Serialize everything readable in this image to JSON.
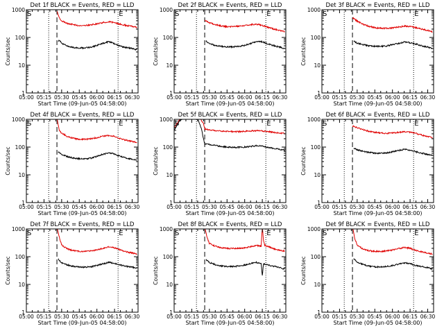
{
  "colors": {
    "events": "#000000",
    "lld": "#e00000",
    "axis": "#000000",
    "background": "#ffffff"
  },
  "common": {
    "ylabel": "Counts/sec",
    "xlabel": "Start Time (09-Jun-05 04:58:00)",
    "x_tick_labels": [
      "05:00",
      "05:15",
      "05:30",
      "05:45",
      "06:00",
      "06:15",
      "06:30"
    ],
    "x_tick_minutes": [
      0,
      15,
      30,
      45,
      60,
      75,
      90
    ],
    "y_tick_labels": [
      "1",
      "10",
      "100",
      "1000"
    ],
    "ylim": [
      1,
      1000
    ],
    "xlim_minutes": [
      0,
      95
    ],
    "markers": {
      "start_label": "S",
      "end_label": "E"
    }
  },
  "chart_data": [
    {
      "type": "line",
      "title": "Det 1f BLACK = Events, RED = LLD",
      "vlines": {
        "dashed": [
          0,
          26
        ],
        "dotted": [
          19,
          78
        ]
      },
      "s_min": 0,
      "e_min": 78,
      "series": [
        {
          "name": "LLD (red)",
          "color": "#e00000",
          "start_min": 26,
          "x": [
            26,
            28,
            30,
            35,
            40,
            45,
            50,
            55,
            60,
            65,
            70,
            75,
            80,
            85,
            90,
            94
          ],
          "values": [
            900,
            500,
            400,
            320,
            290,
            270,
            270,
            285,
            310,
            345,
            370,
            340,
            300,
            270,
            250,
            235
          ]
        },
        {
          "name": "Events (black)",
          "color": "#000000",
          "start_min": 27,
          "x": [
            27,
            28,
            30,
            35,
            40,
            45,
            50,
            55,
            60,
            65,
            70,
            75,
            80,
            85,
            90,
            94
          ],
          "values": [
            75,
            80,
            62,
            48,
            44,
            42,
            42,
            45,
            52,
            62,
            70,
            60,
            48,
            43,
            40,
            36
          ]
        }
      ]
    },
    {
      "type": "line",
      "title": "Det 2f BLACK = Events, RED = LLD",
      "vlines": {
        "dashed": [
          0,
          26
        ],
        "dotted": [
          19,
          78
        ]
      },
      "s_min": 0,
      "e_min": 78,
      "series": [
        {
          "name": "LLD (red)",
          "color": "#e00000",
          "start_min": 26,
          "x": [
            26,
            30,
            35,
            40,
            45,
            50,
            55,
            60,
            65,
            70,
            75,
            80,
            85,
            90,
            94
          ],
          "values": [
            420,
            340,
            290,
            260,
            245,
            245,
            255,
            270,
            290,
            300,
            270,
            230,
            200,
            180,
            165
          ]
        },
        {
          "name": "Events (black)",
          "color": "#000000",
          "start_min": 27,
          "x": [
            27,
            30,
            35,
            40,
            45,
            50,
            55,
            60,
            65,
            70,
            75,
            80,
            85,
            90,
            94
          ],
          "values": [
            75,
            60,
            52,
            48,
            46,
            46,
            48,
            52,
            60,
            72,
            70,
            58,
            50,
            45,
            40
          ]
        }
      ]
    },
    {
      "type": "line",
      "title": "Det 3f BLACK = Events, RED = LLD",
      "vlines": {
        "dashed": [
          0,
          26
        ],
        "dotted": [
          19,
          78
        ]
      },
      "s_min": 0,
      "e_min": 78,
      "series": [
        {
          "name": "LLD (red)",
          "color": "#e00000",
          "start_min": 26,
          "x": [
            26,
            30,
            35,
            40,
            45,
            50,
            55,
            60,
            65,
            70,
            75,
            80,
            85,
            90,
            94
          ],
          "values": [
            520,
            390,
            300,
            250,
            225,
            215,
            215,
            220,
            235,
            255,
            250,
            225,
            200,
            180,
            160
          ]
        },
        {
          "name": "Events (black)",
          "color": "#000000",
          "start_min": 27,
          "x": [
            27,
            30,
            35,
            40,
            45,
            50,
            55,
            60,
            65,
            70,
            75,
            80,
            85,
            90,
            94
          ],
          "values": [
            75,
            62,
            55,
            50,
            48,
            48,
            50,
            55,
            60,
            68,
            65,
            58,
            50,
            45,
            40
          ]
        }
      ]
    },
    {
      "type": "line",
      "title": "Det 4f BLACK = Events, RED = LLD",
      "vlines": {
        "dashed": [
          0,
          26
        ],
        "dotted": [
          19,
          78
        ]
      },
      "s_min": 0,
      "e_min": 78,
      "series": [
        {
          "name": "LLD (red)",
          "color": "#e00000",
          "start_min": 26,
          "x": [
            26,
            28,
            30,
            35,
            40,
            45,
            50,
            55,
            60,
            65,
            70,
            75,
            80,
            85,
            90,
            94
          ],
          "values": [
            1100,
            400,
            320,
            240,
            205,
            190,
            190,
            200,
            220,
            245,
            260,
            240,
            200,
            175,
            160,
            150
          ]
        },
        {
          "name": "Events (black)",
          "color": "#000000",
          "start_min": 27,
          "x": [
            27,
            30,
            35,
            40,
            45,
            50,
            55,
            60,
            65,
            70,
            75,
            80,
            85,
            90,
            94
          ],
          "values": [
            70,
            55,
            45,
            40,
            38,
            38,
            40,
            46,
            55,
            62,
            56,
            46,
            40,
            37,
            34
          ]
        }
      ]
    },
    {
      "type": "line",
      "title": "Det 5f BLACK = Events, RED = LLD",
      "vlines": {
        "dashed": [
          0,
          26
        ],
        "dotted": [
          19,
          78
        ]
      },
      "s_min": 0,
      "e_min": 78,
      "series": [
        {
          "name": "LLD (red)",
          "color": "#e00000",
          "start_min": 0,
          "x": [
            0,
            2,
            5,
            10,
            15,
            18,
            22,
            25,
            26,
            28,
            30,
            35,
            40,
            45,
            50,
            55,
            60,
            65,
            70,
            75,
            80,
            85,
            90,
            94
          ],
          "values": [
            500,
            650,
            1000,
            1200,
            1200,
            1200,
            1100,
            700,
            450,
            430,
            410,
            390,
            375,
            365,
            360,
            360,
            370,
            380,
            390,
            380,
            360,
            340,
            320,
            310
          ]
        },
        {
          "name": "Events (black)",
          "color": "#000000",
          "start_min": 0,
          "x": [
            0,
            3,
            6,
            12,
            16,
            20,
            23,
            25,
            26,
            30,
            35,
            40,
            45,
            50,
            55,
            60,
            65,
            70,
            75,
            80,
            85,
            90,
            94
          ],
          "values": [
            400,
            700,
            1000,
            1200,
            1200,
            1000,
            500,
            200,
            130,
            125,
            115,
            105,
            100,
            98,
            98,
            100,
            105,
            112,
            108,
            98,
            90,
            82,
            76
          ]
        }
      ]
    },
    {
      "type": "line",
      "title": "Det 6f BLACK = Events, RED = LLD",
      "vlines": {
        "dashed": [
          0,
          26
        ],
        "dotted": [
          19,
          78
        ]
      },
      "s_min": 0,
      "e_min": 78,
      "series": [
        {
          "name": "LLD (red)",
          "color": "#e00000",
          "start_min": 26,
          "x": [
            26,
            30,
            35,
            40,
            45,
            50,
            55,
            60,
            65,
            70,
            75,
            80,
            85,
            90,
            94
          ],
          "values": [
            580,
            500,
            420,
            370,
            340,
            320,
            315,
            320,
            340,
            360,
            350,
            310,
            270,
            240,
            220
          ]
        },
        {
          "name": "Events (black)",
          "color": "#000000",
          "start_min": 27,
          "x": [
            27,
            30,
            35,
            40,
            45,
            50,
            55,
            60,
            65,
            70,
            75,
            80,
            85,
            90,
            94
          ],
          "values": [
            90,
            80,
            70,
            64,
            60,
            60,
            62,
            68,
            75,
            82,
            78,
            68,
            60,
            55,
            50
          ]
        }
      ]
    },
    {
      "type": "line",
      "title": "Det 7f BLACK = Events, RED = LLD",
      "vlines": {
        "dashed": [
          0,
          26
        ],
        "dotted": [
          19,
          78
        ]
      },
      "s_min": 0,
      "e_min": 78,
      "series": [
        {
          "name": "LLD (red)",
          "color": "#e00000",
          "start_min": 26,
          "x": [
            26,
            28,
            30,
            35,
            40,
            45,
            50,
            55,
            60,
            65,
            70,
            75,
            80,
            85,
            90,
            94
          ],
          "values": [
            1200,
            500,
            260,
            190,
            165,
            155,
            155,
            160,
            175,
            200,
            225,
            210,
            175,
            150,
            135,
            125
          ]
        },
        {
          "name": "Events (black)",
          "color": "#000000",
          "start_min": 27,
          "x": [
            27,
            30,
            35,
            40,
            45,
            50,
            55,
            60,
            65,
            70,
            75,
            80,
            85,
            90,
            94
          ],
          "values": [
            80,
            60,
            50,
            45,
            42,
            42,
            44,
            48,
            55,
            62,
            58,
            50,
            45,
            42,
            38
          ]
        }
      ]
    },
    {
      "type": "line",
      "title": "Det 8f BLACK = Events, RED = LLD",
      "vlines": {
        "dashed": [
          0,
          26
        ],
        "dotted": [
          19,
          78
        ]
      },
      "s_min": 0,
      "e_min": 78,
      "series": [
        {
          "name": "LLD (red)",
          "color": "#e00000",
          "start_min": 26,
          "x": [
            26,
            28,
            30,
            35,
            40,
            45,
            50,
            55,
            60,
            65,
            70,
            74,
            75,
            76,
            77,
            80,
            85,
            90,
            94
          ],
          "values": [
            1200,
            500,
            300,
            240,
            210,
            200,
            195,
            200,
            210,
            230,
            250,
            240,
            1200,
            400,
            260,
            230,
            190,
            170,
            160
          ]
        },
        {
          "name": "Events (black)",
          "color": "#000000",
          "start_min": 27,
          "x": [
            27,
            30,
            35,
            40,
            45,
            50,
            55,
            60,
            65,
            70,
            74,
            75,
            76,
            80,
            85,
            90,
            94
          ],
          "values": [
            80,
            62,
            52,
            46,
            44,
            44,
            46,
            50,
            56,
            62,
            58,
            20,
            55,
            50,
            45,
            40,
            36
          ]
        }
      ]
    },
    {
      "type": "line",
      "title": "Det 9f BLACK = Events, RED = LLD",
      "vlines": {
        "dashed": [
          0,
          26
        ],
        "dotted": [
          19,
          78
        ]
      },
      "s_min": 0,
      "e_min": 78,
      "series": [
        {
          "name": "LLD (red)",
          "color": "#e00000",
          "start_min": 26,
          "x": [
            26,
            28,
            30,
            35,
            40,
            45,
            50,
            55,
            60,
            65,
            70,
            75,
            80,
            85,
            90,
            94
          ],
          "values": [
            1200,
            450,
            260,
            190,
            165,
            155,
            155,
            160,
            175,
            195,
            215,
            200,
            170,
            150,
            135,
            125
          ]
        },
        {
          "name": "Events (black)",
          "color": "#000000",
          "start_min": 27,
          "x": [
            27,
            30,
            35,
            40,
            45,
            50,
            55,
            60,
            65,
            70,
            75,
            80,
            85,
            90,
            94
          ],
          "values": [
            85,
            65,
            52,
            46,
            43,
            43,
            45,
            48,
            54,
            60,
            56,
            48,
            44,
            40,
            36
          ]
        }
      ]
    }
  ]
}
